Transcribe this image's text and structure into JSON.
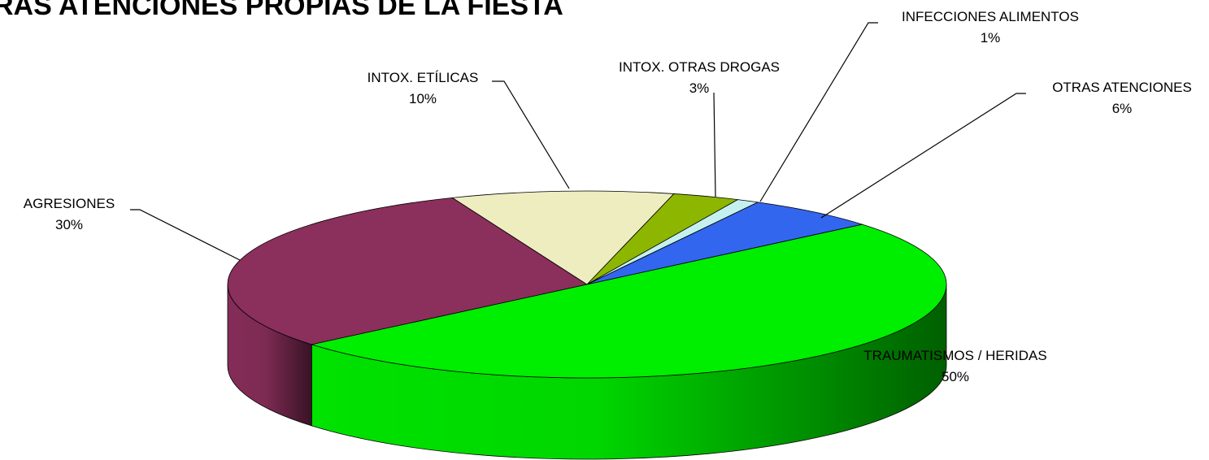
{
  "chart_data": {
    "type": "pie3d",
    "title": "RAS ATENCIONES PROPIAS DE LA FIESTA",
    "categories": [
      "AGRESIONES",
      "INTOX. ETÍLICAS",
      "INTOX. OTRAS DROGAS",
      "INFECCIONES ALIMENTOS",
      "OTRAS ATENCIONES",
      "TRAUMATISMOS / HERIDAS"
    ],
    "values": [
      30,
      10,
      3,
      1,
      6,
      50
    ],
    "value_labels": [
      "30%",
      "10%",
      "3%",
      "1%",
      "6%",
      "50%"
    ],
    "colors": [
      "#8b2f5c",
      "#eeedc0",
      "#8db600",
      "#c5f0f0",
      "#3366ee",
      "#00ee00"
    ]
  }
}
